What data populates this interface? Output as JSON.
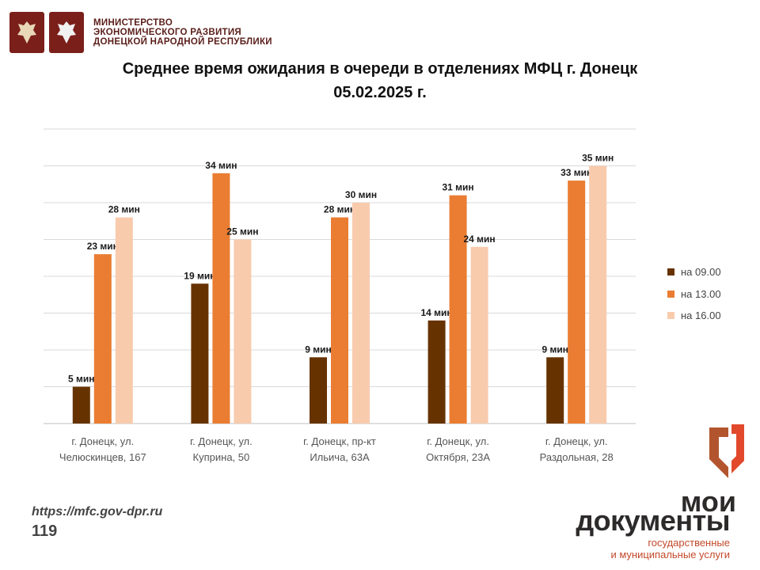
{
  "header": {
    "ministry_lines": [
      "МИНИСТЕРСТВО",
      "ЭКОНОМИЧЕСКОГО РАЗВИТИЯ",
      "ДОНЕЦКОЙ НАРОДНОЙ РЕСПУБЛИКИ"
    ]
  },
  "chart_data": {
    "type": "bar",
    "title_line1": "Среднее время ожидания в очереди в отделениях МФЦ г. Донецк",
    "title_line2": "05.02.2025 г.",
    "categories": [
      [
        "г. Донецк, ул.",
        "Челюскинцев, 167"
      ],
      [
        "г. Донецк, ул.",
        "Куприна, 50"
      ],
      [
        "г. Донецк, пр-кт",
        "Ильича, 63А"
      ],
      [
        "г. Донецк, ул.",
        "Октября, 23А"
      ],
      [
        "г. Донецк, ул.",
        "Раздольная, 28"
      ]
    ],
    "series": [
      {
        "name": "на 09.00",
        "color": "#663300",
        "values": [
          5,
          19,
          9,
          14,
          9
        ],
        "labels": [
          "5 мин",
          "19 мин",
          "9 мин",
          "14 мин",
          "9 мин"
        ]
      },
      {
        "name": "на 13.00",
        "color": "#ea7d32",
        "values": [
          23,
          34,
          28,
          31,
          33
        ],
        "labels": [
          "23 мин",
          "34 мин",
          "28 мин",
          "31 мин",
          "33 мин"
        ]
      },
      {
        "name": "на 16.00",
        "color": "#f8cbad",
        "values": [
          28,
          25,
          30,
          24,
          35
        ],
        "labels": [
          "28 мин",
          "25 мин",
          "30 мин",
          "24 мин",
          "35 мин"
        ]
      }
    ],
    "ylim": [
      0,
      40
    ],
    "grid": true,
    "legend_position": "right"
  },
  "footer": {
    "url": "https://mfc.gov-dpr.ru",
    "page_number": "119"
  },
  "brand": {
    "line1": "мои",
    "line2": "документы",
    "sub1": "государственные",
    "sub2": "и муниципальные услуги",
    "accent": "#e2492c"
  }
}
